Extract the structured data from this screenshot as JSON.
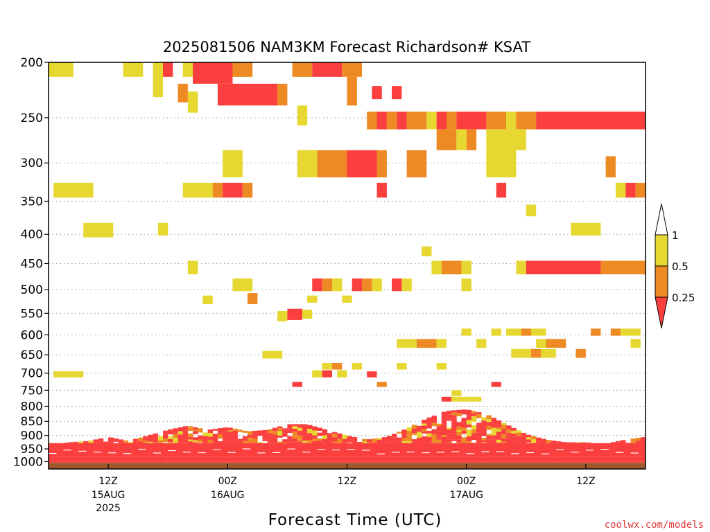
{
  "chart_data": {
    "type": "heatmap",
    "title": "2025081506 NAM3KM Forecast Richardson# KSAT",
    "xlabel": "Forecast Time (UTC)",
    "ylabel": "",
    "credit": "coolwx.com/models",
    "y_scale": "log",
    "ylim": [
      1030,
      200
    ],
    "xlim_hours_after_init": [
      0,
      60
    ],
    "y_ticks": [
      200,
      250,
      300,
      350,
      400,
      450,
      500,
      550,
      600,
      650,
      700,
      750,
      800,
      850,
      900,
      950,
      1000
    ],
    "x_ticks": [
      {
        "hours_after_init": 6,
        "label": "12Z",
        "date": "15AUG",
        "year": "2025"
      },
      {
        "hours_after_init": 18,
        "label": "00Z",
        "date": "16AUG",
        "year": ""
      },
      {
        "hours_after_init": 30,
        "label": "12Z",
        "date": "",
        "year": ""
      },
      {
        "hours_after_init": 42,
        "label": "00Z",
        "date": "17AUG",
        "year": ""
      },
      {
        "hours_after_init": 54,
        "label": "12Z",
        "date": "",
        "year": ""
      }
    ],
    "gridlines": "dotted horizontal at y ticks",
    "colorbar": {
      "levels": [
        "1",
        "0.5",
        "0.25"
      ],
      "bins": [
        {
          "range": "> 1",
          "color": "#ffffff"
        },
        {
          "range": "0.5 - 1",
          "color": "#e6d830"
        },
        {
          "range": "0.25 - 0.5",
          "color": "#ee8a24"
        },
        {
          "range": "< 0.25",
          "color": "#fb3e3e"
        }
      ]
    },
    "ground_below_hPa": 1005,
    "ground_color": "#9b5a2e",
    "cells": [
      {
        "t0": 0,
        "t1": 2.5,
        "p0": 200,
        "p1": 212,
        "c": "y"
      },
      {
        "t0": 7.5,
        "t1": 9.5,
        "p0": 200,
        "p1": 212,
        "c": "y"
      },
      {
        "t0": 10.5,
        "t1": 11.5,
        "p0": 200,
        "p1": 230,
        "c": "y"
      },
      {
        "t0": 11.5,
        "t1": 12.5,
        "p0": 200,
        "p1": 212,
        "c": "r"
      },
      {
        "t0": 13.5,
        "t1": 14.5,
        "p0": 200,
        "p1": 212,
        "c": "y"
      },
      {
        "t0": 14.5,
        "t1": 18.5,
        "p0": 200,
        "p1": 218,
        "c": "r"
      },
      {
        "t0": 18.5,
        "t1": 20.5,
        "p0": 200,
        "p1": 212,
        "c": "o"
      },
      {
        "t0": 17,
        "t1": 23,
        "p0": 218,
        "p1": 238,
        "c": "r"
      },
      {
        "t0": 23,
        "t1": 24,
        "p0": 218,
        "p1": 238,
        "c": "o"
      },
      {
        "t0": 24.5,
        "t1": 26.5,
        "p0": 200,
        "p1": 212,
        "c": "o"
      },
      {
        "t0": 26.5,
        "t1": 29.5,
        "p0": 200,
        "p1": 212,
        "c": "r"
      },
      {
        "t0": 29.5,
        "t1": 31.5,
        "p0": 200,
        "p1": 212,
        "c": "o"
      },
      {
        "t0": 30,
        "t1": 31,
        "p0": 212,
        "p1": 238,
        "c": "o"
      },
      {
        "t0": 32.5,
        "t1": 33.5,
        "p0": 220,
        "p1": 232,
        "c": "r"
      },
      {
        "t0": 34.5,
        "t1": 35.5,
        "p0": 220,
        "p1": 232,
        "c": "r"
      },
      {
        "t0": 13,
        "t1": 14,
        "p0": 218,
        "p1": 235,
        "c": "o"
      },
      {
        "t0": 14,
        "t1": 15,
        "p0": 225,
        "p1": 245,
        "c": "y"
      },
      {
        "t0": 25,
        "t1": 26,
        "p0": 238,
        "p1": 258,
        "c": "y"
      },
      {
        "t0": 32,
        "t1": 33,
        "p0": 244,
        "p1": 262,
        "c": "o"
      },
      {
        "t0": 33,
        "t1": 34,
        "p0": 244,
        "p1": 262,
        "c": "r"
      },
      {
        "t0": 34,
        "t1": 35,
        "p0": 244,
        "p1": 262,
        "c": "o"
      },
      {
        "t0": 35,
        "t1": 36,
        "p0": 244,
        "p1": 262,
        "c": "r"
      },
      {
        "t0": 36,
        "t1": 38,
        "p0": 244,
        "p1": 262,
        "c": "o"
      },
      {
        "t0": 38,
        "t1": 39,
        "p0": 244,
        "p1": 262,
        "c": "y"
      },
      {
        "t0": 39,
        "t1": 40,
        "p0": 244,
        "p1": 262,
        "c": "r"
      },
      {
        "t0": 40,
        "t1": 41,
        "p0": 244,
        "p1": 262,
        "c": "o"
      },
      {
        "t0": 41,
        "t1": 44,
        "p0": 244,
        "p1": 262,
        "c": "r"
      },
      {
        "t0": 44,
        "t1": 46,
        "p0": 244,
        "p1": 262,
        "c": "o"
      },
      {
        "t0": 46,
        "t1": 47,
        "p0": 244,
        "p1": 262,
        "c": "y"
      },
      {
        "t0": 47,
        "t1": 49,
        "p0": 244,
        "p1": 262,
        "c": "o"
      },
      {
        "t0": 49,
        "t1": 60,
        "p0": 244,
        "p1": 262,
        "c": "r"
      },
      {
        "t0": 39,
        "t1": 41,
        "p0": 262,
        "p1": 285,
        "c": "o"
      },
      {
        "t0": 41,
        "t1": 42,
        "p0": 262,
        "p1": 285,
        "c": "y"
      },
      {
        "t0": 42,
        "t1": 43,
        "p0": 262,
        "p1": 285,
        "c": "o"
      },
      {
        "t0": 44,
        "t1": 48,
        "p0": 262,
        "p1": 285,
        "c": "y"
      },
      {
        "t0": 30,
        "t1": 33,
        "p0": 285,
        "p1": 318,
        "c": "r"
      },
      {
        "t0": 33,
        "t1": 34,
        "p0": 285,
        "p1": 318,
        "c": "o"
      },
      {
        "t0": 27,
        "t1": 30,
        "p0": 285,
        "p1": 318,
        "c": "o"
      },
      {
        "t0": 36,
        "t1": 38,
        "p0": 285,
        "p1": 318,
        "c": "o"
      },
      {
        "t0": 25,
        "t1": 27,
        "p0": 285,
        "p1": 318,
        "c": "y"
      },
      {
        "t0": 17.5,
        "t1": 19.5,
        "p0": 285,
        "p1": 318,
        "c": "y"
      },
      {
        "t0": 44,
        "t1": 47,
        "p0": 285,
        "p1": 318,
        "c": "y"
      },
      {
        "t0": 56,
        "t1": 57,
        "p0": 292,
        "p1": 318,
        "c": "o"
      },
      {
        "t0": 0.5,
        "t1": 4.5,
        "p0": 325,
        "p1": 345,
        "c": "y"
      },
      {
        "t0": 13.5,
        "t1": 16.5,
        "p0": 325,
        "p1": 345,
        "c": "y"
      },
      {
        "t0": 16.5,
        "t1": 17.5,
        "p0": 325,
        "p1": 345,
        "c": "o"
      },
      {
        "t0": 17.5,
        "t1": 19.5,
        "p0": 325,
        "p1": 345,
        "c": "r"
      },
      {
        "t0": 19.5,
        "t1": 20.5,
        "p0": 325,
        "p1": 345,
        "c": "o"
      },
      {
        "t0": 33,
        "t1": 34,
        "p0": 325,
        "p1": 345,
        "c": "r"
      },
      {
        "t0": 45,
        "t1": 46,
        "p0": 325,
        "p1": 345,
        "c": "r"
      },
      {
        "t0": 57,
        "t1": 58,
        "p0": 325,
        "p1": 345,
        "c": "y"
      },
      {
        "t0": 58,
        "t1": 59,
        "p0": 325,
        "p1": 345,
        "c": "r"
      },
      {
        "t0": 59,
        "t1": 60,
        "p0": 325,
        "p1": 345,
        "c": "o"
      },
      {
        "t0": 48,
        "t1": 49,
        "p0": 355,
        "p1": 372,
        "c": "y"
      },
      {
        "t0": 3.5,
        "t1": 6.5,
        "p0": 382,
        "p1": 405,
        "c": "y"
      },
      {
        "t0": 11,
        "t1": 12,
        "p0": 382,
        "p1": 402,
        "c": "y"
      },
      {
        "t0": 52.5,
        "t1": 55.5,
        "p0": 382,
        "p1": 402,
        "c": "y"
      },
      {
        "t0": 37.5,
        "t1": 38.5,
        "p0": 420,
        "p1": 437,
        "c": "y"
      },
      {
        "t0": 14,
        "t1": 15,
        "p0": 445,
        "p1": 470,
        "c": "y"
      },
      {
        "t0": 38.5,
        "t1": 39.5,
        "p0": 445,
        "p1": 470,
        "c": "y"
      },
      {
        "t0": 39.5,
        "t1": 41.5,
        "p0": 445,
        "p1": 470,
        "c": "o"
      },
      {
        "t0": 41.5,
        "t1": 42.5,
        "p0": 445,
        "p1": 470,
        "c": "y"
      },
      {
        "t0": 47,
        "t1": 48,
        "p0": 445,
        "p1": 470,
        "c": "y"
      },
      {
        "t0": 48,
        "t1": 55.5,
        "p0": 445,
        "p1": 470,
        "c": "r"
      },
      {
        "t0": 55.5,
        "t1": 60,
        "p0": 445,
        "p1": 470,
        "c": "o"
      },
      {
        "t0": 18.5,
        "t1": 20.5,
        "p0": 478,
        "p1": 503,
        "c": "y"
      },
      {
        "t0": 26.5,
        "t1": 27.5,
        "p0": 478,
        "p1": 503,
        "c": "r"
      },
      {
        "t0": 27.5,
        "t1": 28.5,
        "p0": 478,
        "p1": 503,
        "c": "o"
      },
      {
        "t0": 28.5,
        "t1": 29.5,
        "p0": 478,
        "p1": 503,
        "c": "y"
      },
      {
        "t0": 30.5,
        "t1": 31.5,
        "p0": 478,
        "p1": 503,
        "c": "r"
      },
      {
        "t0": 31.5,
        "t1": 32.5,
        "p0": 478,
        "p1": 503,
        "c": "o"
      },
      {
        "t0": 32.5,
        "t1": 33.5,
        "p0": 478,
        "p1": 503,
        "c": "y"
      },
      {
        "t0": 34.5,
        "t1": 35.5,
        "p0": 478,
        "p1": 503,
        "c": "r"
      },
      {
        "t0": 35.5,
        "t1": 36.5,
        "p0": 478,
        "p1": 503,
        "c": "y"
      },
      {
        "t0": 41.5,
        "t1": 42.5,
        "p0": 478,
        "p1": 503,
        "c": "y"
      },
      {
        "t0": 15.5,
        "t1": 16.5,
        "p0": 512,
        "p1": 530,
        "c": "y"
      },
      {
        "t0": 20,
        "t1": 21,
        "p0": 507,
        "p1": 530,
        "c": "o"
      },
      {
        "t0": 26,
        "t1": 27,
        "p0": 512,
        "p1": 527,
        "c": "y"
      },
      {
        "t0": 29.5,
        "t1": 30.5,
        "p0": 512,
        "p1": 527,
        "c": "y"
      },
      {
        "t0": 23,
        "t1": 24,
        "p0": 545,
        "p1": 568,
        "c": "y"
      },
      {
        "t0": 24,
        "t1": 25.5,
        "p0": 540,
        "p1": 565,
        "c": "r"
      },
      {
        "t0": 25.5,
        "t1": 26.5,
        "p0": 542,
        "p1": 562,
        "c": "y"
      },
      {
        "t0": 41.5,
        "t1": 42.5,
        "p0": 585,
        "p1": 602,
        "c": "y"
      },
      {
        "t0": 44.5,
        "t1": 45.5,
        "p0": 585,
        "p1": 602,
        "c": "y"
      },
      {
        "t0": 46,
        "t1": 47.5,
        "p0": 585,
        "p1": 602,
        "c": "y"
      },
      {
        "t0": 47.5,
        "t1": 48.5,
        "p0": 585,
        "p1": 602,
        "c": "o"
      },
      {
        "t0": 48.5,
        "t1": 50,
        "p0": 585,
        "p1": 602,
        "c": "y"
      },
      {
        "t0": 54.5,
        "t1": 55.5,
        "p0": 585,
        "p1": 602,
        "c": "o"
      },
      {
        "t0": 56.5,
        "t1": 57.5,
        "p0": 585,
        "p1": 602,
        "c": "o"
      },
      {
        "t0": 57.5,
        "t1": 59.5,
        "p0": 585,
        "p1": 602,
        "c": "y"
      },
      {
        "t0": 35,
        "t1": 37,
        "p0": 610,
        "p1": 632,
        "c": "y"
      },
      {
        "t0": 37,
        "t1": 39,
        "p0": 610,
        "p1": 632,
        "c": "o"
      },
      {
        "t0": 39,
        "t1": 40,
        "p0": 610,
        "p1": 632,
        "c": "y"
      },
      {
        "t0": 43,
        "t1": 44,
        "p0": 610,
        "p1": 632,
        "c": "y"
      },
      {
        "t0": 50,
        "t1": 52,
        "p0": 610,
        "p1": 632,
        "c": "o"
      },
      {
        "t0": 49,
        "t1": 50,
        "p0": 610,
        "p1": 632,
        "c": "y"
      },
      {
        "t0": 58.5,
        "t1": 59.5,
        "p0": 610,
        "p1": 632,
        "c": "y"
      },
      {
        "t0": 46.5,
        "t1": 48.5,
        "p0": 635,
        "p1": 658,
        "c": "y"
      },
      {
        "t0": 48.5,
        "t1": 49.5,
        "p0": 635,
        "p1": 658,
        "c": "o"
      },
      {
        "t0": 49.5,
        "t1": 51,
        "p0": 635,
        "p1": 658,
        "c": "y"
      },
      {
        "t0": 53,
        "t1": 54,
        "p0": 635,
        "p1": 658,
        "c": "o"
      },
      {
        "t0": 21.5,
        "t1": 23.5,
        "p0": 640,
        "p1": 660,
        "c": "y"
      },
      {
        "t0": 27.5,
        "t1": 28.5,
        "p0": 672,
        "p1": 690,
        "c": "y"
      },
      {
        "t0": 28.5,
        "t1": 29.5,
        "p0": 672,
        "p1": 690,
        "c": "o"
      },
      {
        "t0": 30.5,
        "t1": 31.5,
        "p0": 672,
        "p1": 690,
        "c": "y"
      },
      {
        "t0": 35,
        "t1": 36,
        "p0": 672,
        "p1": 690,
        "c": "y"
      },
      {
        "t0": 39,
        "t1": 40,
        "p0": 672,
        "p1": 690,
        "c": "y"
      },
      {
        "t0": 0.5,
        "t1": 3.5,
        "p0": 695,
        "p1": 712,
        "c": "y"
      },
      {
        "t0": 26.5,
        "t1": 27.5,
        "p0": 692,
        "p1": 712,
        "c": "y"
      },
      {
        "t0": 27.5,
        "t1": 28.5,
        "p0": 692,
        "p1": 712,
        "c": "r"
      },
      {
        "t0": 29,
        "t1": 30,
        "p0": 692,
        "p1": 712,
        "c": "y"
      },
      {
        "t0": 32,
        "t1": 33,
        "p0": 695,
        "p1": 712,
        "c": "r"
      },
      {
        "t0": 24.5,
        "t1": 25.5,
        "p0": 725,
        "p1": 740,
        "c": "r"
      },
      {
        "t0": 33,
        "t1": 34,
        "p0": 725,
        "p1": 740,
        "c": "o"
      },
      {
        "t0": 44.5,
        "t1": 45.5,
        "p0": 725,
        "p1": 740,
        "c": "r"
      },
      {
        "t0": 40.5,
        "t1": 41.5,
        "p0": 750,
        "p1": 768,
        "c": "y"
      },
      {
        "t0": 39.5,
        "t1": 40.5,
        "p0": 770,
        "p1": 785,
        "c": "r"
      },
      {
        "t0": 40.5,
        "t1": 42,
        "p0": 770,
        "p1": 785,
        "c": "y"
      },
      {
        "t0": 42,
        "t1": 43.5,
        "p0": 770,
        "p1": 785,
        "c": "y"
      },
      {
        "t0": 0,
        "t1": 60,
        "p0": 928,
        "p1": 980,
        "c": "r"
      },
      {
        "t0": 0,
        "t1": 60,
        "p0": 980,
        "p1": 1005,
        "c": "r"
      }
    ],
    "boundary_layer_top_hPa": [
      [
        0,
        935
      ],
      [
        2,
        925
      ],
      [
        4,
        920
      ],
      [
        6,
        905
      ],
      [
        8,
        920
      ],
      [
        10,
        900
      ],
      [
        12,
        880
      ],
      [
        14,
        865
      ],
      [
        16,
        880
      ],
      [
        18,
        870
      ],
      [
        20,
        885
      ],
      [
        22,
        880
      ],
      [
        24,
        860
      ],
      [
        26,
        860
      ],
      [
        28,
        880
      ],
      [
        30,
        900
      ],
      [
        32,
        915
      ],
      [
        34,
        905
      ],
      [
        36,
        875
      ],
      [
        38,
        840
      ],
      [
        40,
        815
      ],
      [
        42,
        810
      ],
      [
        44,
        825
      ],
      [
        46,
        860
      ],
      [
        48,
        895
      ],
      [
        50,
        915
      ],
      [
        52,
        925
      ],
      [
        54,
        925
      ],
      [
        56,
        930
      ],
      [
        58,
        915
      ],
      [
        60,
        905
      ]
    ]
  }
}
